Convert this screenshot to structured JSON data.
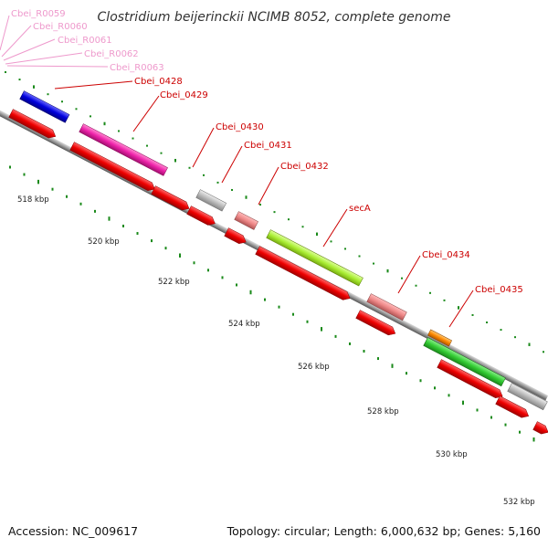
{
  "title": "Clostridium beijerinckii NCIMB 8052, complete genome",
  "footer": {
    "accession": "Accession: NC_009617",
    "topology": "Topology: circular; Length: 6,000,632 bp; Genes: 5,160"
  },
  "rna_labels": [
    "Cbei_R0059",
    "Cbei_R0060",
    "Cbei_R0061",
    "Cbei_R0062",
    "Cbei_R0063"
  ],
  "gene_labels": [
    "Cbei_0428",
    "Cbei_0429",
    "Cbei_0430",
    "Cbei_0431",
    "Cbei_0432",
    "secA",
    "Cbei_0434",
    "Cbei_0435"
  ],
  "scale_labels": [
    "518 kbp",
    "520 kbp",
    "522 kbp",
    "524 kbp",
    "526 kbp",
    "528 kbp",
    "530 kbp",
    "532 kbp"
  ],
  "colors": {
    "backbone": "#888888",
    "strand_arrow": "#ee0000",
    "ticks": "#1a8a1a",
    "rna_label": "#ee99cc",
    "gene_label": "#cc0000",
    "cog": [
      "#0000dd",
      "#ee22aa",
      "#bbbbbb",
      "#ee8888",
      "#aaee33",
      "#ee8888",
      "#ff8800",
      "#33cc33",
      "#bbbbbb"
    ]
  }
}
